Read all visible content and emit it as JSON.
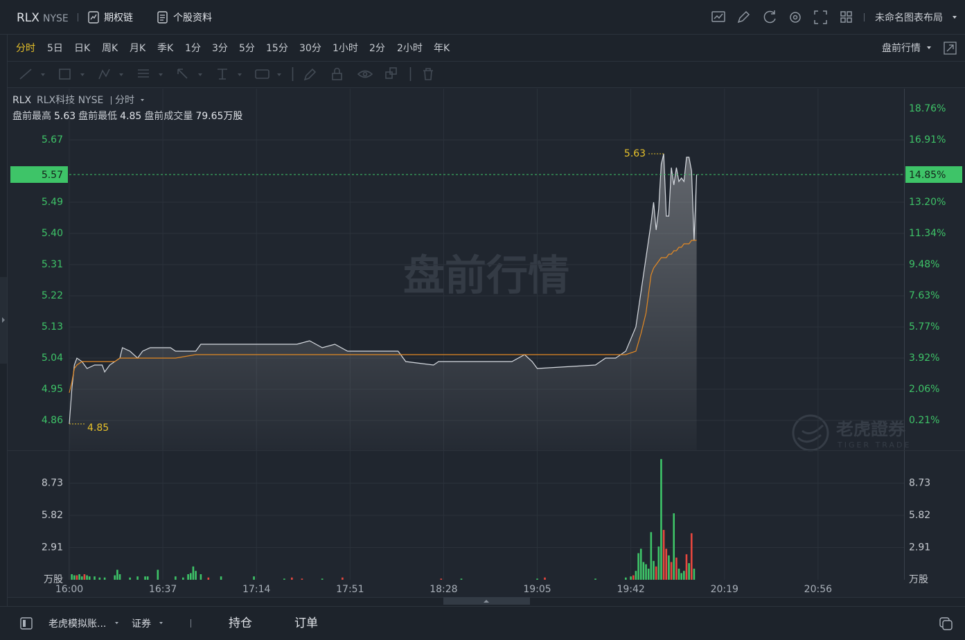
{
  "header": {
    "symbol": "RLX",
    "exchange": "NYSE",
    "links": [
      "期权链",
      "个股资料"
    ],
    "layout_name": "未命名图表布局"
  },
  "periods": {
    "items": [
      "分时",
      "5日",
      "日K",
      "周K",
      "月K",
      "季K",
      "1分",
      "3分",
      "5分",
      "15分",
      "30分",
      "1小时",
      "2分",
      "2小时",
      "年K"
    ],
    "selected": 0,
    "session": "盘前行情"
  },
  "chart_header": {
    "symbol": "RLX",
    "name": "RLX科技 NYSE",
    "period": "分时",
    "stats": [
      {
        "label": "盘前最高",
        "value": 5.63
      },
      {
        "label": "盘前最低",
        "value": 4.85
      },
      {
        "label": "盘前成交量",
        "value": "79.65万股"
      }
    ]
  },
  "watermark": "盘前行情",
  "logo": {
    "name": "老虎證券",
    "sub": "TIGER TRADE"
  },
  "chart_data": [
    {
      "type": "line",
      "x": [
        "16:00",
        "16:01",
        "16:02",
        "16:03",
        "16:05",
        "16:07",
        "16:10",
        "16:13",
        "16:14",
        "16:16",
        "16:18",
        "16:20",
        "16:21",
        "16:24",
        "16:27",
        "16:29",
        "16:32",
        "16:40",
        "16:42",
        "16:50",
        "16:52",
        "17:30",
        "17:35",
        "17:40",
        "17:45",
        "17:50",
        "18:10",
        "18:13",
        "18:24",
        "18:26",
        "18:55",
        "19:00",
        "19:03",
        "19:05",
        "19:28",
        "19:32",
        "19:36",
        "19:40",
        "19:44",
        "19:46",
        "19:48",
        "19:50",
        "19:51",
        "19:52",
        "19:53",
        "19:54",
        "19:55",
        "19:56",
        "19:57",
        "19:58",
        "19:59",
        "20:00",
        "20:01",
        "20:02",
        "20:03",
        "20:04",
        "20:05",
        "20:06",
        "20:07",
        "20:08"
      ],
      "series": [
        {
          "color": "#d8dce2",
          "values": [
            4.85,
            4.95,
            5.02,
            5.04,
            5.03,
            5.01,
            5.02,
            5.02,
            5.0,
            5.02,
            5.03,
            5.04,
            5.07,
            5.06,
            5.04,
            5.06,
            5.07,
            5.07,
            5.06,
            5.06,
            5.08,
            5.08,
            5.09,
            5.07,
            5.08,
            5.06,
            5.06,
            5.03,
            5.02,
            5.03,
            5.03,
            5.05,
            5.03,
            5.01,
            5.02,
            5.04,
            5.04,
            5.06,
            5.13,
            5.23,
            5.33,
            5.43,
            5.49,
            5.41,
            5.47,
            5.6,
            5.63,
            5.45,
            5.45,
            5.59,
            5.54,
            5.59,
            5.55,
            5.56,
            5.55,
            5.62,
            5.62,
            5.58,
            5.38,
            5.57
          ]
        },
        {
          "color": "#e58a23",
          "values": [
            4.94,
            4.97,
            5.01,
            5.02,
            5.03,
            5.03,
            5.03,
            5.03,
            5.03,
            5.03,
            5.03,
            5.04,
            5.04,
            5.04,
            5.04,
            5.04,
            5.04,
            5.04,
            5.04,
            5.05,
            5.05,
            5.05,
            5.05,
            5.05,
            5.05,
            5.05,
            5.05,
            5.05,
            5.05,
            5.05,
            5.05,
            5.05,
            5.05,
            5.05,
            5.05,
            5.05,
            5.05,
            5.05,
            5.06,
            5.11,
            5.17,
            5.28,
            5.3,
            5.31,
            5.32,
            5.33,
            5.33,
            5.33,
            5.34,
            5.34,
            5.35,
            5.35,
            5.36,
            5.36,
            5.37,
            5.37,
            5.37,
            5.38,
            5.38,
            5.38
          ]
        }
      ],
      "xlim": [
        "16:00",
        "21:30"
      ],
      "xticks": [
        "16:00",
        "16:37",
        "17:14",
        "17:51",
        "18:28",
        "19:05",
        "19:42",
        "20:19",
        "20:56"
      ],
      "ylim": [
        4.774,
        5.818
      ],
      "yticks": [
        4.86,
        4.95,
        5.04,
        5.13,
        5.22,
        5.31,
        {
          "value": 5.4,
          "label": "5.40"
        },
        5.49,
        5.67
      ],
      "y2lim": [
        -1.57,
        19.96
      ],
      "y2ticks": [
        {
          "value": 0.21,
          "label": "0.21%"
        },
        {
          "value": 2.06,
          "label": "2.06%"
        },
        {
          "value": 3.92,
          "label": "3.92%"
        },
        {
          "value": 5.77,
          "label": "5.77%"
        },
        {
          "value": 7.63,
          "label": "7.63%"
        },
        {
          "value": 9.48,
          "label": "9.48%"
        },
        {
          "value": 11.34,
          "label": "11.34%"
        },
        {
          "value": 13.2,
          "label": "13.20%"
        },
        {
          "value": 16.91,
          "label": "16.91%"
        },
        {
          "value": 18.76,
          "label": "18.76%"
        }
      ],
      "current": {
        "value": 5.57,
        "change": {
          "value": 14.85,
          "label": "14.85%"
        },
        "color": "#3ec468"
      },
      "annotations": [
        {
          "x": "19:55",
          "value": 5.63
        },
        {
          "x": "16:00",
          "value": 4.85
        }
      ],
      "annotation_color": "#e8c22a",
      "grid": true
    },
    {
      "type": "bar",
      "x": [
        "16:01",
        "16:02",
        "16:03",
        "16:04",
        "16:05",
        "16:06",
        "16:07",
        "16:08",
        "16:10",
        "16:12",
        "16:14",
        "16:18",
        "16:19",
        "16:20",
        "16:24",
        "16:27",
        "16:30",
        "16:31",
        "16:35",
        "16:42",
        "16:45",
        "16:47",
        "16:48",
        "16:49",
        "16:50",
        "16:52",
        "16:55",
        "17:00",
        "17:13",
        "17:25",
        "17:28",
        "17:32",
        "17:40",
        "17:48",
        "18:27",
        "18:35",
        "19:05",
        "19:08",
        "19:28",
        "19:40",
        "19:42",
        "19:43",
        "19:44",
        "19:45",
        "19:46",
        "19:47",
        "19:48",
        "19:49",
        "19:50",
        "19:51",
        "19:52",
        "19:53",
        "19:54",
        "19:55",
        "19:56",
        "19:57",
        "19:58",
        "19:59",
        "20:00",
        "20:01",
        "20:02",
        "20:03",
        "20:04",
        "20:05",
        "20:06",
        "20:07"
      ],
      "values": [
        0.5,
        0.4,
        0.4,
        0.5,
        0.3,
        0.5,
        0.4,
        0.3,
        0.3,
        0.2,
        0.2,
        0.4,
        0.9,
        0.5,
        0.2,
        0.3,
        0.3,
        0.3,
        0.9,
        0.3,
        0.2,
        0.5,
        0.6,
        1.2,
        0.8,
        0.5,
        0.2,
        0.3,
        0.3,
        0.1,
        0.2,
        0.1,
        0.1,
        0.2,
        0.1,
        0.1,
        0.1,
        0.2,
        0.1,
        0.2,
        0.3,
        0.4,
        0.8,
        2.4,
        2.8,
        1.6,
        1.4,
        1.0,
        4.3,
        1.7,
        1.2,
        3.0,
        10.9,
        4.5,
        2.8,
        2.2,
        1.6,
        6.0,
        2.0,
        1.0,
        0.6,
        0.8,
        2.3,
        1.5,
        4.2,
        1.0
      ],
      "colors": [
        "#3ec468",
        "#3ec468",
        "#e8473e",
        "#3ec468",
        "#3ec468",
        "#e8473e",
        "#3ec468",
        "#3ec468",
        "#3ec468",
        "#3ec468",
        "#3ec468",
        "#3ec468",
        "#3ec468",
        "#3ec468",
        "#3ec468",
        "#3ec468",
        "#3ec468",
        "#3ec468",
        "#3ec468",
        "#3ec468",
        "#3ec468",
        "#3ec468",
        "#3ec468",
        "#3ec468",
        "#3ec468",
        "#3ec468",
        "#e8473e",
        "#3ec468",
        "#3ec468",
        "#3ec468",
        "#e8473e",
        "#e8473e",
        "#3ec468",
        "#e8473e",
        "#e8473e",
        "#3ec468",
        "#3ec468",
        "#e8473e",
        "#3ec468",
        "#3ec468",
        "#3ec468",
        "#e8473e",
        "#3ec468",
        "#3ec468",
        "#3ec468",
        "#3ec468",
        "#3ec468",
        "#3ec468",
        "#3ec468",
        "#3ec468",
        "#e8473e",
        "#3ec468",
        "#3ec468",
        "#e8473e",
        "#e8473e",
        "#3ec468",
        "#e8473e",
        "#3ec468",
        "#e8473e",
        "#3ec468",
        "#3ec468",
        "#3ec468",
        "#e8473e",
        "#3ec468",
        "#e8473e",
        "#3ec468"
      ],
      "xlim": [
        "16:00",
        "21:30"
      ],
      "ylim": [
        0,
        11.7
      ],
      "yticks": [
        {
          "value": 0,
          "label": "万股"
        },
        2.91,
        5.82,
        8.73
      ],
      "grid": true
    }
  ],
  "footer": {
    "account": "老虎模拟账...",
    "market": "证券",
    "tabs": [
      "持仓",
      "订单"
    ]
  }
}
